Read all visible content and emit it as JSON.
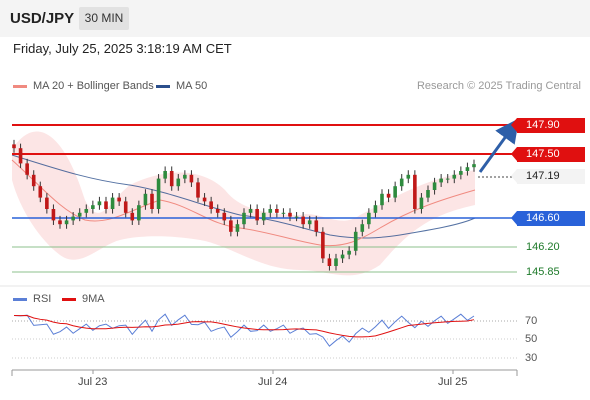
{
  "header": {
    "symbol": "USD/JPY",
    "timeframe": "30 MIN",
    "datetime": "Friday, July 25, 2025 3:18:19 AM CET"
  },
  "legend": {
    "ma20": {
      "label": "MA 20 + Bollinger Bands",
      "color": "#f08a80"
    },
    "ma50": {
      "label": "MA 50",
      "color": "#2b4f8c"
    },
    "credit": "Research © 2025 Trading Central"
  },
  "levels": [
    {
      "label": "147.90",
      "type": "resistance",
      "color": "#e01010"
    },
    {
      "label": "147.50",
      "type": "resistance",
      "color": "#e01010"
    },
    {
      "label": "147.19",
      "type": "last",
      "color": "#222222"
    },
    {
      "label": "146.60",
      "type": "pivot",
      "color": "#2962d9"
    },
    {
      "label": "146.20",
      "type": "support",
      "color": "#1e7a2a"
    },
    {
      "label": "145.85",
      "type": "support",
      "color": "#1e7a2a"
    }
  ],
  "rsi_legend": {
    "rsi": {
      "label": "RSI",
      "color": "#5b7fd6"
    },
    "ma9": {
      "label": "9MA",
      "color": "#e01010"
    }
  },
  "rsi_ticks": [
    "70",
    "50",
    "30"
  ],
  "x_ticks": [
    "Jul 23",
    "Jul 24",
    "Jul 25"
  ],
  "chart_data": {
    "type": "candlestick",
    "ylim": [
      145.6,
      148.1
    ],
    "close_series": [
      147.4,
      147.2,
      147.05,
      146.9,
      146.75,
      146.6,
      146.45,
      146.4,
      146.45,
      146.5,
      146.55,
      146.6,
      146.65,
      146.7,
      146.6,
      146.75,
      146.7,
      146.55,
      146.45,
      146.65,
      146.8,
      146.6,
      147.0,
      147.1,
      146.9,
      147.0,
      147.05,
      146.95,
      146.75,
      146.7,
      146.6,
      146.55,
      146.45,
      146.3,
      146.4,
      146.55,
      146.6,
      146.45,
      146.55,
      146.6,
      146.55,
      146.55,
      146.5,
      146.5,
      146.4,
      146.45,
      146.3,
      145.95,
      145.85,
      145.95,
      146.0,
      146.05,
      146.3,
      146.4,
      146.55,
      146.65,
      146.8,
      146.75,
      146.9,
      147.0,
      147.05,
      146.6,
      146.75,
      146.85,
      146.95,
      147.0,
      147.0,
      147.05,
      147.1,
      147.15,
      147.19
    ]
  }
}
